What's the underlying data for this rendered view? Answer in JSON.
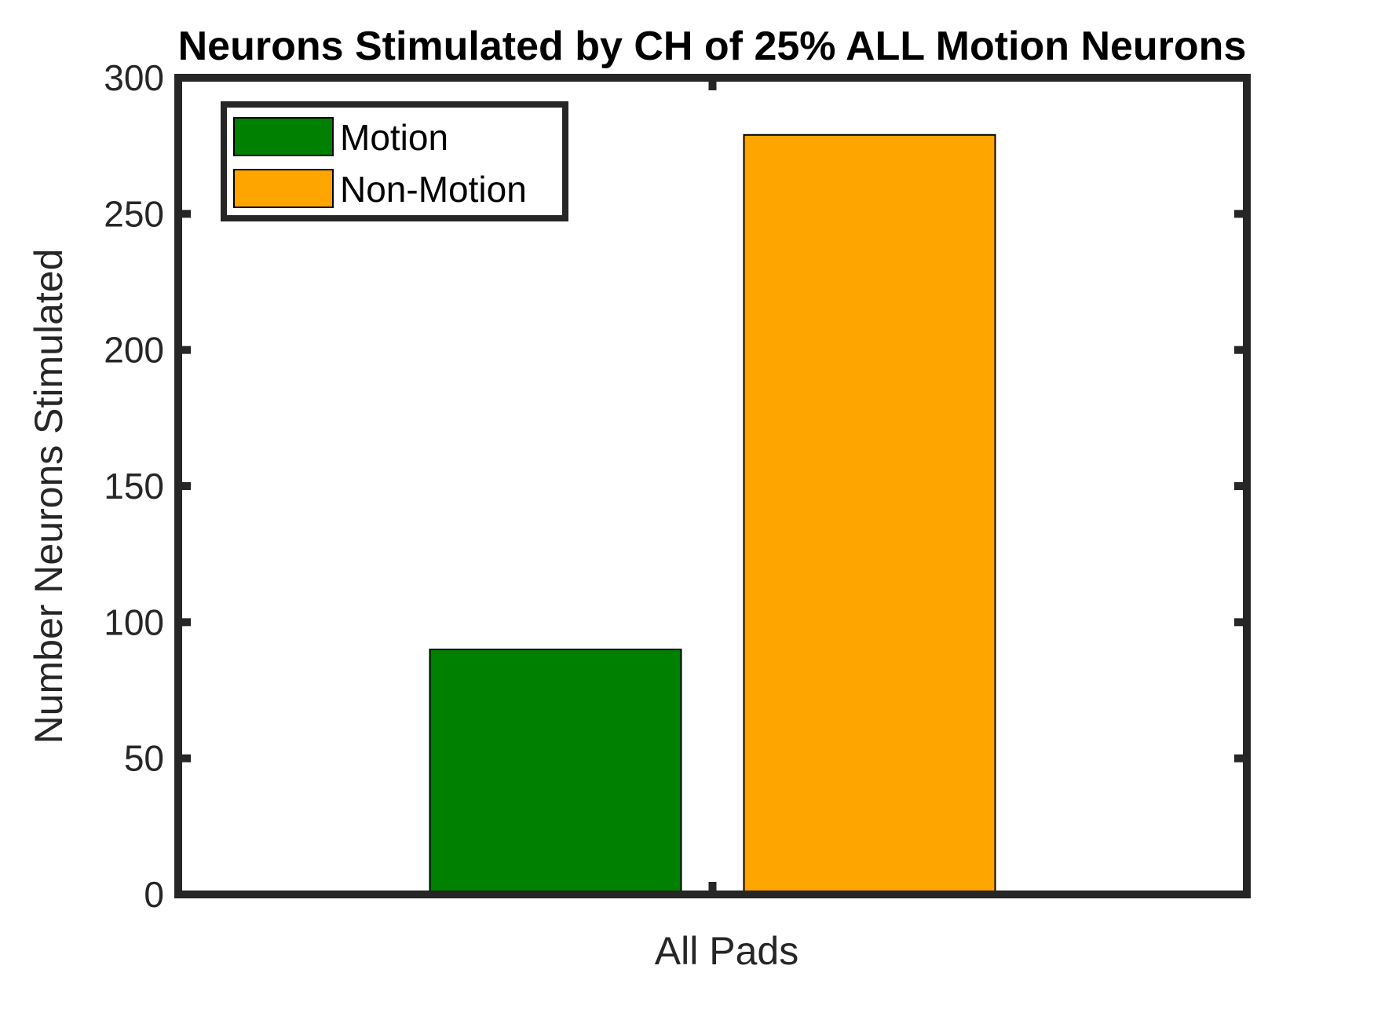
{
  "chart_data": {
    "type": "bar",
    "title": "Neurons Stimulated by CH of 25% ALL Motion Neurons",
    "xlabel": "",
    "ylabel": "Number Neurons Stimulated",
    "categories": [
      "All Pads"
    ],
    "series": [
      {
        "name": "Motion",
        "values": [
          90
        ],
        "color": "#008000"
      },
      {
        "name": "Non-Motion",
        "values": [
          279
        ],
        "color": "#FFA500"
      }
    ],
    "ylim": [
      0,
      300
    ],
    "yticks": [
      0,
      50,
      100,
      150,
      200,
      250,
      300
    ],
    "grid": false,
    "legend": "top-left"
  }
}
